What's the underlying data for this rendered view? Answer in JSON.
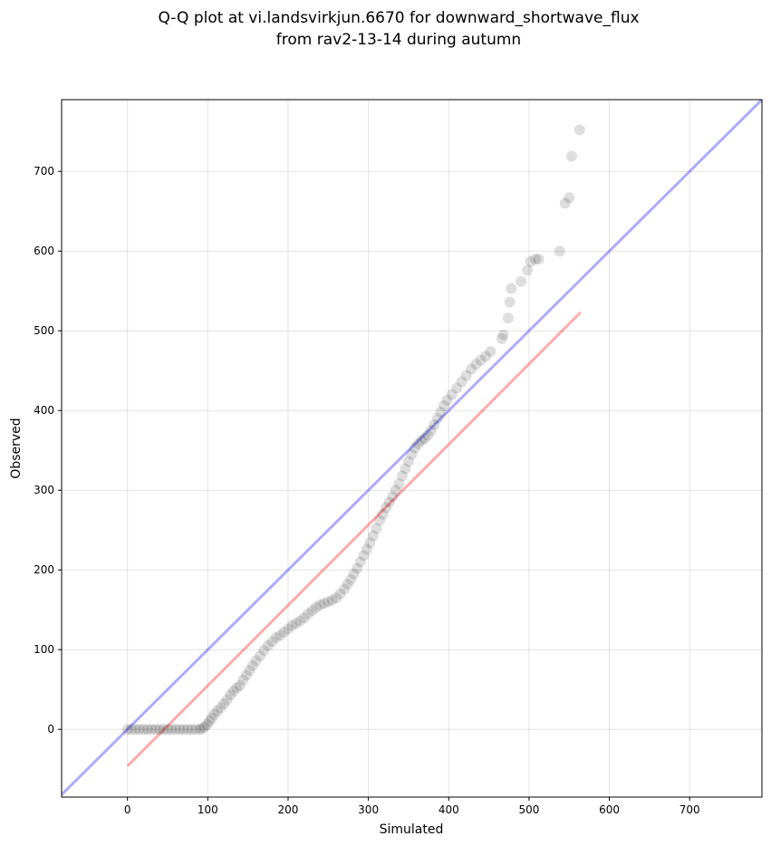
{
  "chart_data": {
    "type": "scatter",
    "title_line1": "Q-Q plot at vi.landsvirkjun.6670 for downward_shortwave_flux",
    "title_line2": "from rav2-13-14 during autumn",
    "xlabel": "Simulated",
    "ylabel": "Observed",
    "xlim": [
      -82,
      790
    ],
    "ylim": [
      -85,
      790
    ],
    "x_ticks": [
      0,
      100,
      200,
      300,
      400,
      500,
      600,
      700
    ],
    "y_ticks": [
      0,
      100,
      200,
      300,
      400,
      500,
      600,
      700
    ],
    "grid": true,
    "reference_line": {
      "name": "1:1 line",
      "color": "#0000ff",
      "from": [
        -82,
        -82
      ],
      "to": [
        790,
        790
      ]
    },
    "fit_line": {
      "name": "fit",
      "color": "#ff0000",
      "from": [
        0,
        -46
      ],
      "to": [
        564,
        523
      ]
    },
    "points_x": [
      0,
      5,
      10,
      15,
      20,
      25,
      30,
      35,
      40,
      45,
      50,
      55,
      60,
      65,
      70,
      75,
      80,
      85,
      90,
      93,
      96,
      99,
      102,
      105,
      108,
      112,
      116,
      120,
      124,
      128,
      132,
      136,
      140,
      144,
      148,
      152,
      156,
      160,
      165,
      170,
      175,
      180,
      185,
      190,
      195,
      200,
      205,
      210,
      215,
      220,
      225,
      230,
      235,
      240,
      245,
      250,
      255,
      260,
      265,
      270,
      274,
      278,
      282,
      286,
      290,
      294,
      298,
      302,
      306,
      310,
      314,
      318,
      322,
      326,
      330,
      334,
      338,
      342,
      346,
      350,
      354,
      358,
      362,
      366,
      370,
      374,
      378,
      382,
      386,
      390,
      394,
      398,
      404,
      410,
      416,
      422,
      428,
      434,
      440,
      446,
      452,
      466,
      468,
      474,
      476,
      478,
      490,
      498,
      502,
      508,
      512,
      538,
      545,
      550,
      553,
      563
    ],
    "points_y": [
      0,
      0,
      0,
      0,
      0,
      0,
      0,
      0,
      0,
      0,
      0,
      0,
      0,
      0,
      0,
      0,
      0,
      0,
      0,
      1,
      3,
      6,
      10,
      14,
      19,
      23,
      27,
      32,
      37,
      43,
      48,
      52,
      55,
      62,
      68,
      74,
      80,
      86,
      92,
      99,
      105,
      110,
      115,
      118,
      122,
      126,
      130,
      133,
      136,
      140,
      145,
      149,
      153,
      156,
      158,
      160,
      162,
      165,
      170,
      176,
      182,
      188,
      195,
      202,
      210,
      218,
      226,
      234,
      243,
      252,
      262,
      270,
      278,
      285,
      292,
      300,
      308,
      318,
      327,
      336,
      345,
      353,
      358,
      362,
      365,
      369,
      375,
      382,
      390,
      398,
      406,
      413,
      420,
      428,
      436,
      444,
      452,
      458,
      463,
      468,
      474,
      490,
      495,
      516,
      536,
      553,
      562,
      576,
      587,
      590,
      590,
      600,
      660,
      667,
      719,
      752
    ]
  }
}
